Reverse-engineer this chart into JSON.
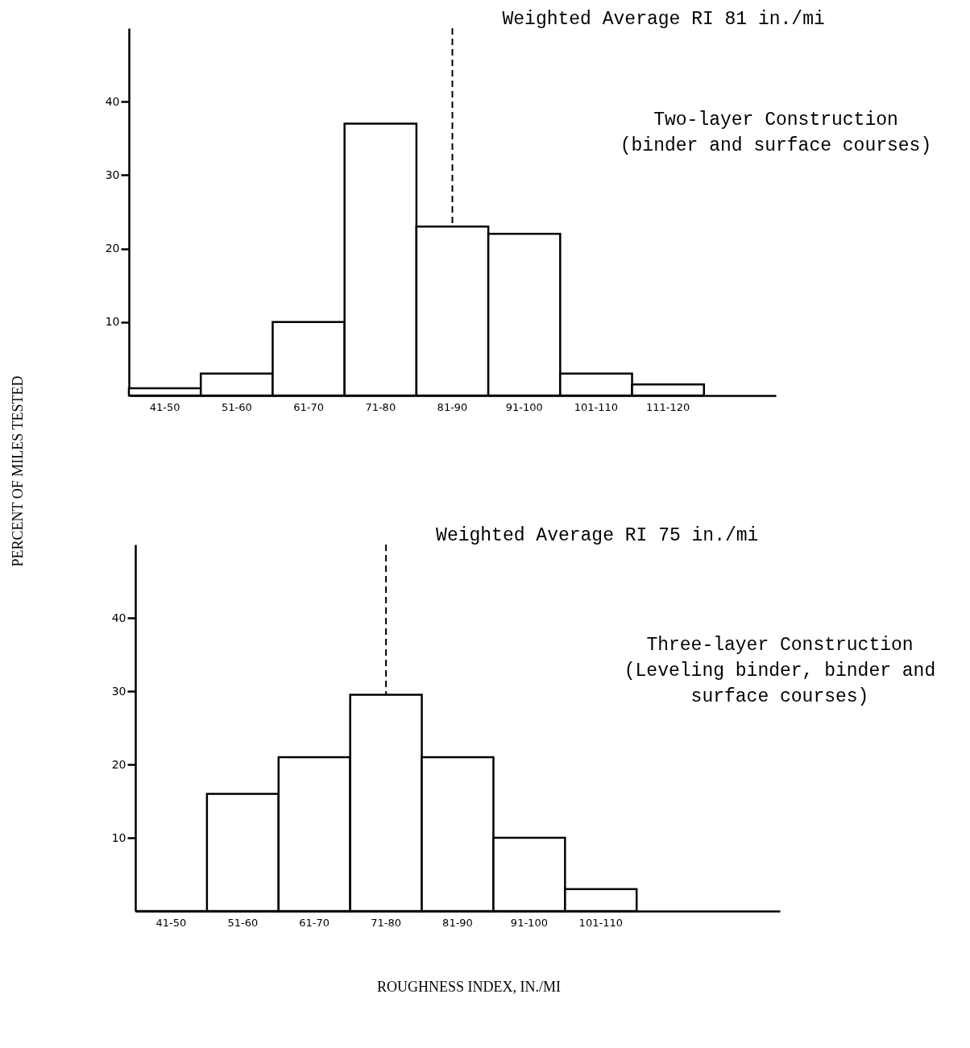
{
  "chart_data": [
    {
      "type": "bar",
      "ylabel": "PERCENT OF MILES TESTED",
      "categories": [
        "41-50",
        "51-60",
        "61-70",
        "71-80",
        "81-90",
        "91-100",
        "101-110",
        "111-120",
        null
      ],
      "values": [
        1,
        3,
        10,
        37,
        23,
        22,
        3,
        1.5,
        null
      ],
      "color": "#ffffff",
      "ylim": [
        0,
        50
      ],
      "yticks": [
        10,
        20,
        30,
        40
      ],
      "ref_lines": [
        {
          "axis": "x",
          "value": "81-90",
          "label": "Weighted Average RI 81 in./mi",
          "line_style": "dashed"
        }
      ],
      "annotations": [
        "Two-layer Construction",
        "(binder and surface courses)"
      ]
    },
    {
      "type": "bar",
      "xlabel": "ROUGHNESS INDEX, IN./MI",
      "categories": [
        "41-50",
        "51-60",
        "61-70",
        "71-80",
        "81-90",
        "91-100",
        "101-110",
        null,
        null
      ],
      "values": [
        0,
        16,
        21,
        29.5,
        21,
        10,
        3,
        null,
        null
      ],
      "color": "#ffffff",
      "ylim": [
        0,
        50
      ],
      "yticks": [
        10,
        20,
        30,
        40
      ],
      "ref_lines": [
        {
          "axis": "x",
          "value": "71-80",
          "label": "Weighted Average RI 75 in./mi",
          "line_style": "dashed"
        }
      ],
      "annotations": [
        "Three-layer Construction",
        "(Leveling binder, binder and",
        "surface courses)"
      ]
    }
  ]
}
